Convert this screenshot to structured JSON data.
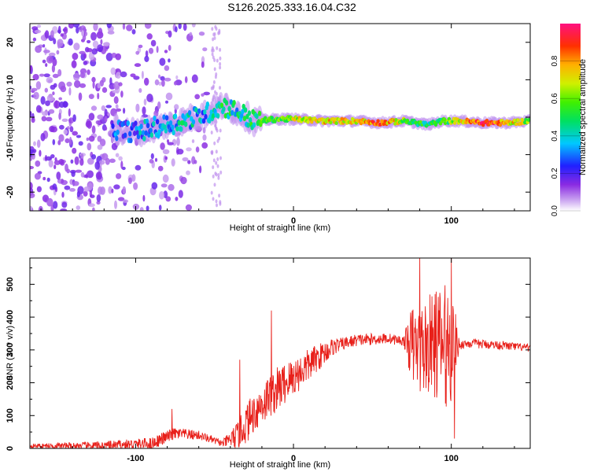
{
  "title": "S126.2025.333.16.04.C32",
  "colors": {
    "snr_line": "#e8201a",
    "axis": "#000000"
  },
  "chart_data": [
    {
      "type": "heatmap",
      "name": "spectrogram",
      "xlabel": "Height of straight line (km)",
      "ylabel": "Frequency (Hz)",
      "xlim": [
        -167,
        150
      ],
      "ylim": [
        -25,
        25
      ],
      "x_ticks": [
        -100,
        0,
        100
      ],
      "y_ticks": [
        20,
        10,
        0,
        -10,
        -20
      ],
      "colormap": "rainbow (violet-blue-cyan-green-yellow-red-magenta)",
      "colorbar": {
        "label": "Normalized spectral amplitude",
        "range": [
          0,
          1
        ],
        "ticks": [
          0.0,
          0.2,
          0.4,
          0.6,
          0.8
        ]
      },
      "ridge": [
        {
          "x": -115,
          "f": -3,
          "amp": 0.25
        },
        {
          "x": -100,
          "f": -4,
          "amp": 0.3
        },
        {
          "x": -85,
          "f": -2.5,
          "amp": 0.35
        },
        {
          "x": -70,
          "f": -1,
          "amp": 0.4
        },
        {
          "x": -55,
          "f": 1,
          "amp": 0.35
        },
        {
          "x": -45,
          "f": 3,
          "amp": 0.45
        },
        {
          "x": -35,
          "f": 1.5,
          "amp": 0.4
        },
        {
          "x": -25,
          "f": -1,
          "amp": 0.5
        },
        {
          "x": -10,
          "f": -0.5,
          "amp": 0.55
        },
        {
          "x": 0,
          "f": -0.5,
          "amp": 0.65
        },
        {
          "x": 20,
          "f": -1,
          "amp": 0.75
        },
        {
          "x": 40,
          "f": -1,
          "amp": 0.7
        },
        {
          "x": 55,
          "f": -1.5,
          "amp": 0.85
        },
        {
          "x": 70,
          "f": -1,
          "amp": 0.6
        },
        {
          "x": 85,
          "f": -2,
          "amp": 0.45
        },
        {
          "x": 95,
          "f": -1,
          "amp": 0.5
        },
        {
          "x": 105,
          "f": -1,
          "amp": 0.7
        },
        {
          "x": 120,
          "f": -1.5,
          "amp": 0.95
        },
        {
          "x": 135,
          "f": -1.5,
          "amp": 0.75
        },
        {
          "x": 150,
          "f": -1,
          "amp": 0.6
        }
      ],
      "noise_region": {
        "x_from": -167,
        "x_to": -50,
        "f_range": [
          -25,
          25
        ]
      }
    },
    {
      "type": "line",
      "name": "snr",
      "xlabel": "Height of straight line (km)",
      "ylabel": "SNR (10 * v/v)",
      "xlim": [
        -167,
        150
      ],
      "ylim": [
        0,
        580
      ],
      "x_ticks": [
        -100,
        0,
        100
      ],
      "y_ticks": [
        0,
        100,
        200,
        300,
        400,
        500
      ],
      "trend": [
        {
          "x": -167,
          "y": 8
        },
        {
          "x": -120,
          "y": 8
        },
        {
          "x": -90,
          "y": 15
        },
        {
          "x": -75,
          "y": 45
        },
        {
          "x": -60,
          "y": 40
        },
        {
          "x": -45,
          "y": 15
        },
        {
          "x": -35,
          "y": 40
        },
        {
          "x": -25,
          "y": 110
        },
        {
          "x": -15,
          "y": 160
        },
        {
          "x": -5,
          "y": 200
        },
        {
          "x": 5,
          "y": 235
        },
        {
          "x": 15,
          "y": 275
        },
        {
          "x": 25,
          "y": 310
        },
        {
          "x": 40,
          "y": 330
        },
        {
          "x": 60,
          "y": 335
        },
        {
          "x": 72,
          "y": 325
        },
        {
          "x": 80,
          "y": 300
        },
        {
          "x": 90,
          "y": 320
        },
        {
          "x": 100,
          "y": 310
        },
        {
          "x": 110,
          "y": 320
        },
        {
          "x": 130,
          "y": 315
        },
        {
          "x": 150,
          "y": 305
        }
      ],
      "noise_amplitude": [
        {
          "x": -167,
          "a": 6
        },
        {
          "x": -80,
          "a": 20
        },
        {
          "x": -45,
          "a": 10
        },
        {
          "x": -30,
          "a": 60
        },
        {
          "x": -10,
          "a": 70
        },
        {
          "x": 10,
          "a": 50
        },
        {
          "x": 30,
          "a": 20
        },
        {
          "x": 70,
          "a": 15
        },
        {
          "x": 75,
          "a": 120
        },
        {
          "x": 100,
          "a": 200
        },
        {
          "x": 105,
          "a": 15
        },
        {
          "x": 150,
          "a": 12
        }
      ],
      "spikes": [
        {
          "x": -77,
          "y": 120
        },
        {
          "x": -34,
          "y": 270
        },
        {
          "x": -14,
          "y": 420
        },
        {
          "x": 80,
          "y": 580
        },
        {
          "x": 100,
          "y": 580
        },
        {
          "x": 102,
          "y": 30
        }
      ]
    }
  ]
}
